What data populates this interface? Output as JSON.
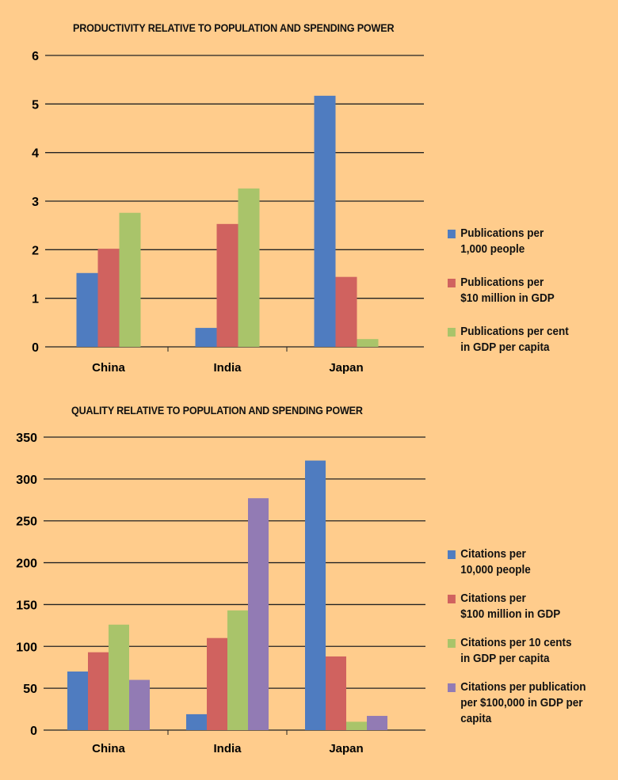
{
  "colors": [
    "#4f7cc0",
    "#d0625f",
    "#a9c46a",
    "#927bb4"
  ],
  "chart_data": [
    {
      "type": "bar",
      "title": "PRODUCTIVITY RELATIVE TO POPULATION AND SPENDING POWER",
      "categories": [
        "China",
        "India",
        "Japan"
      ],
      "ylim": [
        0,
        6
      ],
      "yticks": [
        0,
        1,
        2,
        3,
        4,
        5,
        6
      ],
      "grid": true,
      "legend": "right",
      "series": [
        {
          "name": "Publications per 1,000 people",
          "lines": [
            "Publications per",
            "1,000 people"
          ],
          "values": [
            1.52,
            0.39,
            5.17
          ]
        },
        {
          "name": "Publications per $10 million in GDP",
          "lines": [
            "Publications per",
            "$10 million in GDP"
          ],
          "values": [
            2.02,
            2.53,
            1.44
          ]
        },
        {
          "name": "Publications per cent in GDP per capita",
          "lines": [
            "Publications per cent",
            "in GDP per capita"
          ],
          "values": [
            2.76,
            3.26,
            0.16
          ]
        }
      ]
    },
    {
      "type": "bar",
      "title": "QUALITY RELATIVE TO POPULATION AND SPENDING POWER",
      "categories": [
        "China",
        "India",
        "Japan"
      ],
      "ylim": [
        0,
        350
      ],
      "yticks": [
        0,
        50,
        100,
        150,
        200,
        250,
        300,
        350
      ],
      "grid": true,
      "legend": "right",
      "series": [
        {
          "name": "Citations per 10,000 people",
          "lines": [
            "Citations per",
            "10,000 people"
          ],
          "values": [
            70,
            19,
            322
          ]
        },
        {
          "name": "Citations per $100 million in GDP",
          "lines": [
            "Citations per",
            "$100 million in GDP"
          ],
          "values": [
            93,
            110,
            88
          ]
        },
        {
          "name": "Citations per 10 cents in GDP per capita",
          "lines": [
            "Citations per 10 cents",
            "in GDP per capita"
          ],
          "values": [
            126,
            143,
            10
          ]
        },
        {
          "name": "Citations per publication per $100,000 in GDP per capita",
          "lines": [
            "Citations per publication",
            "per $100,000 in GDP per",
            "capita"
          ],
          "values": [
            60,
            277,
            17
          ]
        }
      ]
    }
  ]
}
